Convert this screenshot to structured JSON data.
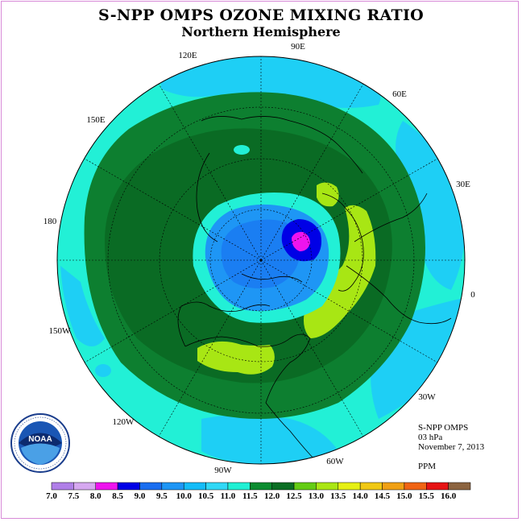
{
  "title": "S-NPP OMPS OZONE MIXING RATIO",
  "subtitle": "Northern Hemisphere",
  "longitude_labels": [
    "90E",
    "60E",
    "30E",
    "0",
    "30W",
    "60W",
    "90W",
    "120W",
    "150W",
    "180",
    "150E",
    "120E"
  ],
  "info": {
    "instrument": "S-NPP OMPS",
    "level": "03 hPa",
    "date": "November 7, 2013",
    "units": "PPM"
  },
  "logo": {
    "text": "NOAA",
    "ring_text": "NATIONAL OCEANIC AND ATMOSPHERIC ADMINISTRATION · U.S. DEPARTMENT OF COMMERCE"
  },
  "colorbar": {
    "ticks": [
      "7.0",
      "7.5",
      "8.0",
      "8.5",
      "9.0",
      "9.5",
      "10.0",
      "10.5",
      "11.0",
      "11.5",
      "12.0",
      "12.5",
      "13.0",
      "13.5",
      "14.0",
      "14.5",
      "15.0",
      "15.5",
      "16.0"
    ],
    "colors": [
      "#b07fe8",
      "#d6a8f0",
      "#ee14ee",
      "#0000e6",
      "#1a6ef0",
      "#1e96f5",
      "#14bcf8",
      "#30d8f6",
      "#20f0d4",
      "#0c8c30",
      "#0b6e24",
      "#64cc14",
      "#aae614",
      "#e6f014",
      "#f0c814",
      "#f0a014",
      "#f06414",
      "#e61414",
      "#8c6440"
    ]
  },
  "colors": {
    "ocean_band": "#22f0d6",
    "outer_blue": "#1ecff5",
    "mid_green": "#0d7f30",
    "dark_green": "#0a6b24",
    "light_green": "#a8e614",
    "inner_blue": "#1e96f5",
    "core_blue": "#0000e6",
    "magenta": "#ee14ee"
  }
}
